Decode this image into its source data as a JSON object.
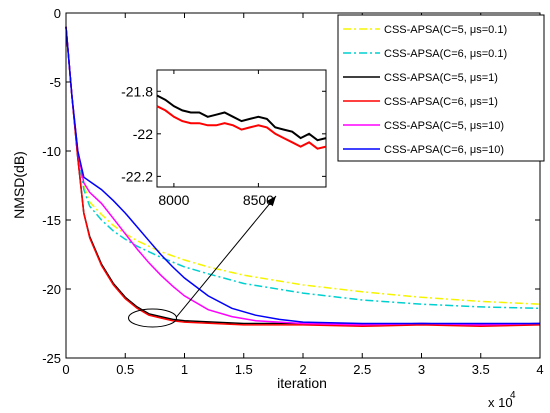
{
  "chart_data": {
    "type": "line",
    "xlabel": "iteration",
    "ylabel": "NMSD(dB)",
    "x_exponent_label": "x 10",
    "x_exponent_power": "4",
    "xlim": [
      0,
      4
    ],
    "ylim": [
      -25,
      0
    ],
    "xticks": [
      0,
      0.5,
      1,
      1.5,
      2,
      2.5,
      3,
      3.5,
      4
    ],
    "xtick_labels": [
      "0",
      "0.5",
      "1",
      "1.5",
      "2",
      "2.5",
      "3",
      "3.5",
      "4"
    ],
    "yticks": [
      0,
      -5,
      -10,
      -15,
      -20,
      -25
    ],
    "ytick_labels": [
      "0",
      "-5",
      "-10",
      "-15",
      "-20",
      "-25"
    ],
    "grid": false,
    "legend_position": "top-right",
    "series": [
      {
        "name": "CSS-APSA(C=5, μs=0.1)",
        "color": "#f5f500",
        "style": "dashdot",
        "x": [
          0,
          0.05,
          0.1,
          0.15,
          0.2,
          0.3,
          0.4,
          0.5,
          0.6,
          0.8,
          1.0,
          1.2,
          1.5,
          2.0,
          2.5,
          3.0,
          3.5,
          4.0
        ],
        "y": [
          -1,
          -6,
          -10,
          -12.5,
          -13.7,
          -14.6,
          -15.4,
          -16.0,
          -16.5,
          -17.3,
          -17.9,
          -18.4,
          -19.0,
          -19.7,
          -20.2,
          -20.6,
          -20.9,
          -21.1
        ]
      },
      {
        "name": "CSS-APSA(C=6, μs=0.1)",
        "color": "#00d0d0",
        "style": "dashdot",
        "x": [
          0,
          0.05,
          0.1,
          0.15,
          0.2,
          0.3,
          0.4,
          0.5,
          0.6,
          0.8,
          1.0,
          1.2,
          1.5,
          2.0,
          2.5,
          3.0,
          3.5,
          4.0
        ],
        "y": [
          -1,
          -6,
          -10,
          -12.8,
          -14.0,
          -15.0,
          -15.8,
          -16.4,
          -16.9,
          -17.7,
          -18.4,
          -18.9,
          -19.6,
          -20.3,
          -20.8,
          -21.1,
          -21.3,
          -21.4
        ]
      },
      {
        "name": "CSS-APSA(C=5, μs=1)",
        "color": "#000000",
        "style": "solid",
        "x": [
          0,
          0.05,
          0.1,
          0.15,
          0.2,
          0.3,
          0.4,
          0.5,
          0.6,
          0.7,
          0.8,
          0.9,
          1.0,
          1.5,
          2.0,
          2.5,
          3.0,
          3.5,
          4.0
        ],
        "y": [
          -1,
          -6,
          -10.5,
          -14.5,
          -16.2,
          -18.2,
          -19.6,
          -20.6,
          -21.3,
          -21.8,
          -22.0,
          -22.2,
          -22.3,
          -22.5,
          -22.5,
          -22.6,
          -22.5,
          -22.6,
          -22.5
        ]
      },
      {
        "name": "CSS-APSA(C=6, μs=1)",
        "color": "#ff0000",
        "style": "solid",
        "x": [
          0,
          0.05,
          0.1,
          0.15,
          0.2,
          0.3,
          0.4,
          0.5,
          0.6,
          0.7,
          0.8,
          0.9,
          1.0,
          1.5,
          2.0,
          2.5,
          3.0,
          3.5,
          4.0
        ],
        "y": [
          -1,
          -6,
          -10.5,
          -14.5,
          -16.3,
          -18.3,
          -19.7,
          -20.7,
          -21.4,
          -21.9,
          -22.1,
          -22.3,
          -22.4,
          -22.6,
          -22.6,
          -22.7,
          -22.6,
          -22.7,
          -22.6
        ]
      },
      {
        "name": "CSS-APSA(C=5, μs=10)",
        "color": "#ff00ff",
        "style": "solid",
        "x": [
          0,
          0.05,
          0.1,
          0.15,
          0.2,
          0.3,
          0.4,
          0.5,
          0.6,
          0.7,
          0.8,
          0.9,
          1.0,
          1.2,
          1.4,
          1.6,
          1.8,
          2.0,
          2.5,
          3.0,
          3.5,
          4.0
        ],
        "y": [
          -1,
          -6,
          -10,
          -12.3,
          -13.0,
          -13.8,
          -14.9,
          -16.0,
          -17.1,
          -18.1,
          -19.0,
          -19.8,
          -20.5,
          -21.5,
          -22.0,
          -22.3,
          -22.4,
          -22.5,
          -22.6,
          -22.5,
          -22.6,
          -22.5
        ]
      },
      {
        "name": "CSS-APSA(C=6, μs=10)",
        "color": "#0000ff",
        "style": "solid",
        "x": [
          0,
          0.05,
          0.1,
          0.15,
          0.2,
          0.3,
          0.4,
          0.5,
          0.6,
          0.7,
          0.8,
          0.9,
          1.0,
          1.2,
          1.4,
          1.6,
          1.8,
          2.0,
          2.5,
          3.0,
          3.5,
          4.0
        ],
        "y": [
          -1,
          -6,
          -10,
          -11.9,
          -12.2,
          -12.8,
          -13.6,
          -14.5,
          -15.5,
          -16.5,
          -17.5,
          -18.4,
          -19.2,
          -20.5,
          -21.4,
          -21.9,
          -22.2,
          -22.4,
          -22.5,
          -22.5,
          -22.5,
          -22.5
        ]
      }
    ],
    "inset": {
      "xlim": [
        7900,
        8900
      ],
      "ylim": [
        -22.25,
        -21.7
      ],
      "xticks": [
        8000,
        8500
      ],
      "xtick_labels": [
        "8000",
        "8500"
      ],
      "yticks": [
        -21.8,
        -22,
        -22.2
      ],
      "ytick_labels": [
        "-21.8",
        "-22",
        "-22.2"
      ],
      "series": [
        {
          "name": "CSS-APSA(C=5, μs=1)",
          "color": "#000000",
          "x": [
            7900,
            7950,
            8000,
            8050,
            8100,
            8150,
            8200,
            8250,
            8300,
            8350,
            8400,
            8450,
            8500,
            8550,
            8600,
            8650,
            8700,
            8750,
            8800,
            8850,
            8900
          ],
          "y": [
            -21.82,
            -21.84,
            -21.87,
            -21.89,
            -21.9,
            -21.9,
            -21.92,
            -21.91,
            -21.9,
            -21.92,
            -21.94,
            -21.93,
            -21.92,
            -21.93,
            -21.97,
            -21.98,
            -21.99,
            -22.02,
            -22.0,
            -22.03,
            -22.02
          ]
        },
        {
          "name": "CSS-APSA(C=6, μs=1)",
          "color": "#ff0000",
          "x": [
            7900,
            7950,
            8000,
            8050,
            8100,
            8150,
            8200,
            8250,
            8300,
            8350,
            8400,
            8450,
            8500,
            8550,
            8600,
            8650,
            8700,
            8750,
            8800,
            8850,
            8900
          ],
          "y": [
            -21.87,
            -21.89,
            -21.92,
            -21.94,
            -21.95,
            -21.95,
            -21.96,
            -21.96,
            -21.95,
            -21.96,
            -21.98,
            -21.97,
            -21.96,
            -21.97,
            -22.0,
            -22.02,
            -22.04,
            -22.06,
            -22.04,
            -22.07,
            -22.06
          ]
        }
      ]
    }
  }
}
